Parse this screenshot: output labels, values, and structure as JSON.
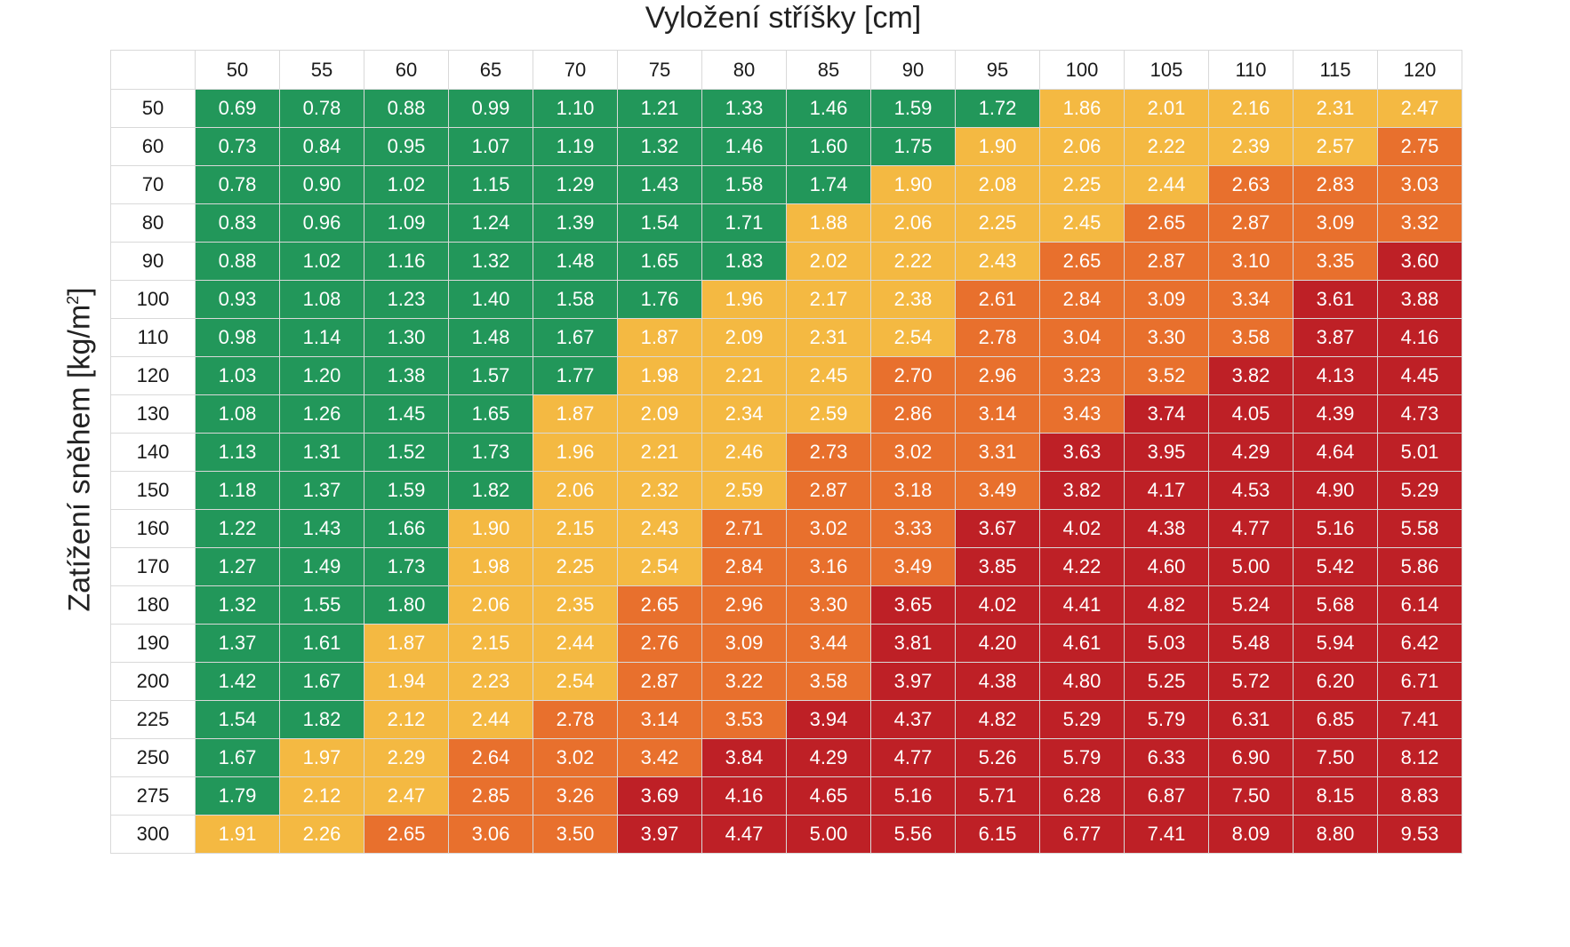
{
  "chart_data": {
    "type": "table",
    "xlabel": "Vyložení stříšky [cm]",
    "ylabel_main": "Zatížení sněhem [kg/m",
    "ylabel_sup": "2",
    "ylabel_tail": "]",
    "columns": [
      "50",
      "55",
      "60",
      "65",
      "70",
      "75",
      "80",
      "85",
      "90",
      "95",
      "100",
      "105",
      "110",
      "115",
      "120"
    ],
    "rows": [
      "50",
      "60",
      "70",
      "80",
      "90",
      "100",
      "110",
      "120",
      "130",
      "140",
      "150",
      "160",
      "170",
      "180",
      "190",
      "200",
      "225",
      "250",
      "275",
      "300"
    ],
    "values": [
      [
        "0.69",
        "0.78",
        "0.88",
        "0.99",
        "1.10",
        "1.21",
        "1.33",
        "1.46",
        "1.59",
        "1.72",
        "1.86",
        "2.01",
        "2.16",
        "2.31",
        "2.47"
      ],
      [
        "0.73",
        "0.84",
        "0.95",
        "1.07",
        "1.19",
        "1.32",
        "1.46",
        "1.60",
        "1.75",
        "1.90",
        "2.06",
        "2.22",
        "2.39",
        "2.57",
        "2.75"
      ],
      [
        "0.78",
        "0.90",
        "1.02",
        "1.15",
        "1.29",
        "1.43",
        "1.58",
        "1.74",
        "1.90",
        "2.08",
        "2.25",
        "2.44",
        "2.63",
        "2.83",
        "3.03"
      ],
      [
        "0.83",
        "0.96",
        "1.09",
        "1.24",
        "1.39",
        "1.54",
        "1.71",
        "1.88",
        "2.06",
        "2.25",
        "2.45",
        "2.65",
        "2.87",
        "3.09",
        "3.32"
      ],
      [
        "0.88",
        "1.02",
        "1.16",
        "1.32",
        "1.48",
        "1.65",
        "1.83",
        "2.02",
        "2.22",
        "2.43",
        "2.65",
        "2.87",
        "3.10",
        "3.35",
        "3.60"
      ],
      [
        "0.93",
        "1.08",
        "1.23",
        "1.40",
        "1.58",
        "1.76",
        "1.96",
        "2.17",
        "2.38",
        "2.61",
        "2.84",
        "3.09",
        "3.34",
        "3.61",
        "3.88"
      ],
      [
        "0.98",
        "1.14",
        "1.30",
        "1.48",
        "1.67",
        "1.87",
        "2.09",
        "2.31",
        "2.54",
        "2.78",
        "3.04",
        "3.30",
        "3.58",
        "3.87",
        "4.16"
      ],
      [
        "1.03",
        "1.20",
        "1.38",
        "1.57",
        "1.77",
        "1.98",
        "2.21",
        "2.45",
        "2.70",
        "2.96",
        "3.23",
        "3.52",
        "3.82",
        "4.13",
        "4.45"
      ],
      [
        "1.08",
        "1.26",
        "1.45",
        "1.65",
        "1.87",
        "2.09",
        "2.34",
        "2.59",
        "2.86",
        "3.14",
        "3.43",
        "3.74",
        "4.05",
        "4.39",
        "4.73"
      ],
      [
        "1.13",
        "1.31",
        "1.52",
        "1.73",
        "1.96",
        "2.21",
        "2.46",
        "2.73",
        "3.02",
        "3.31",
        "3.63",
        "3.95",
        "4.29",
        "4.64",
        "5.01"
      ],
      [
        "1.18",
        "1.37",
        "1.59",
        "1.82",
        "2.06",
        "2.32",
        "2.59",
        "2.87",
        "3.18",
        "3.49",
        "3.82",
        "4.17",
        "4.53",
        "4.90",
        "5.29"
      ],
      [
        "1.22",
        "1.43",
        "1.66",
        "1.90",
        "2.15",
        "2.43",
        "2.71",
        "3.02",
        "3.33",
        "3.67",
        "4.02",
        "4.38",
        "4.77",
        "5.16",
        "5.58"
      ],
      [
        "1.27",
        "1.49",
        "1.73",
        "1.98",
        "2.25",
        "2.54",
        "2.84",
        "3.16",
        "3.49",
        "3.85",
        "4.22",
        "4.60",
        "5.00",
        "5.42",
        "5.86"
      ],
      [
        "1.32",
        "1.55",
        "1.80",
        "2.06",
        "2.35",
        "2.65",
        "2.96",
        "3.30",
        "3.65",
        "4.02",
        "4.41",
        "4.82",
        "5.24",
        "5.68",
        "6.14"
      ],
      [
        "1.37",
        "1.61",
        "1.87",
        "2.15",
        "2.44",
        "2.76",
        "3.09",
        "3.44",
        "3.81",
        "4.20",
        "4.61",
        "5.03",
        "5.48",
        "5.94",
        "6.42"
      ],
      [
        "1.42",
        "1.67",
        "1.94",
        "2.23",
        "2.54",
        "2.87",
        "3.22",
        "3.58",
        "3.97",
        "4.38",
        "4.80",
        "5.25",
        "5.72",
        "6.20",
        "6.71"
      ],
      [
        "1.54",
        "1.82",
        "2.12",
        "2.44",
        "2.78",
        "3.14",
        "3.53",
        "3.94",
        "4.37",
        "4.82",
        "5.29",
        "5.79",
        "6.31",
        "6.85",
        "7.41"
      ],
      [
        "1.67",
        "1.97",
        "2.29",
        "2.64",
        "3.02",
        "3.42",
        "3.84",
        "4.29",
        "4.77",
        "5.26",
        "5.79",
        "6.33",
        "6.90",
        "7.50",
        "8.12"
      ],
      [
        "1.79",
        "2.12",
        "2.47",
        "2.85",
        "3.26",
        "3.69",
        "4.16",
        "4.65",
        "5.16",
        "5.71",
        "6.28",
        "6.87",
        "7.50",
        "8.15",
        "8.83"
      ],
      [
        "1.91",
        "2.26",
        "2.65",
        "3.06",
        "3.50",
        "3.97",
        "4.47",
        "5.00",
        "5.56",
        "6.15",
        "6.77",
        "7.41",
        "8.09",
        "8.80",
        "9.53"
      ]
    ],
    "color_scale": {
      "thresholds": [
        1.85,
        2.6,
        3.6
      ],
      "colors": [
        "#22975a",
        "#f4b942",
        "#e8702d",
        "#be2026"
      ]
    }
  }
}
